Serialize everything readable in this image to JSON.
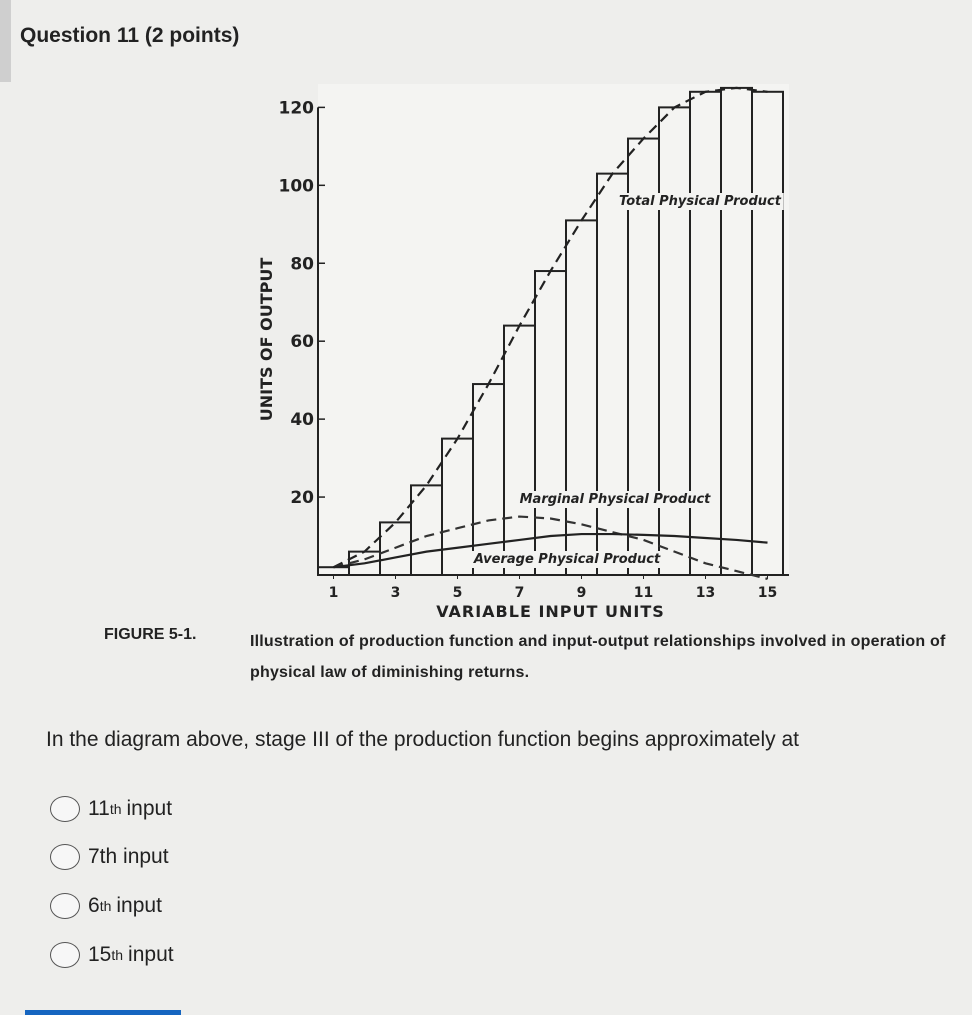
{
  "question": {
    "header": "Question 11 (2 points)",
    "prompt": "In the diagram above, stage III of the production function begins approximately at",
    "options": [
      {
        "number": "11",
        "suffix": "th",
        "text": "input"
      },
      {
        "text": "7th input"
      },
      {
        "number": "6",
        "suffix": "th",
        "text": "input"
      },
      {
        "number": "15",
        "suffix": "th",
        "text": "input"
      }
    ]
  },
  "figure": {
    "label": "FIGURE 5-1.",
    "caption": "Illustration of production function and input-output relationships involved in operation of physical law of diminishing returns."
  },
  "chart_data": {
    "type": "bar",
    "x_label": "VARIABLE INPUT UNITS",
    "y_label": "UNITS OF OUTPUT",
    "x": [
      1,
      2,
      3,
      4,
      5,
      6,
      7,
      8,
      9,
      10,
      11,
      12,
      13,
      14,
      15
    ],
    "series": [
      {
        "name": "Total Physical Product",
        "color": "#222222",
        "dashed": true,
        "values": [
          2,
          6,
          13.5,
          23,
          35,
          49,
          64,
          78,
          91,
          103,
          112,
          120,
          124,
          125,
          124
        ]
      },
      {
        "name": "Marginal Physical Product",
        "color": "#333333",
        "dashed": true,
        "values": [
          2,
          4,
          7,
          10,
          12,
          14,
          15,
          14.5,
          13,
          11,
          9,
          6,
          3,
          1,
          -1
        ]
      },
      {
        "name": "Average Physical Product",
        "color": "#222222",
        "dashed": false,
        "values": [
          2,
          3,
          4.5,
          6,
          7,
          8,
          9,
          10,
          10.5,
          10.5,
          10.3,
          10,
          9.5,
          9,
          8.3
        ]
      }
    ],
    "xlim": [
      0.5,
      15.5
    ],
    "ylim": [
      0,
      126
    ],
    "xticks": [
      1,
      3,
      5,
      7,
      9,
      11,
      13,
      15
    ],
    "yticks": [
      20,
      40,
      60,
      80,
      100,
      120
    ]
  }
}
